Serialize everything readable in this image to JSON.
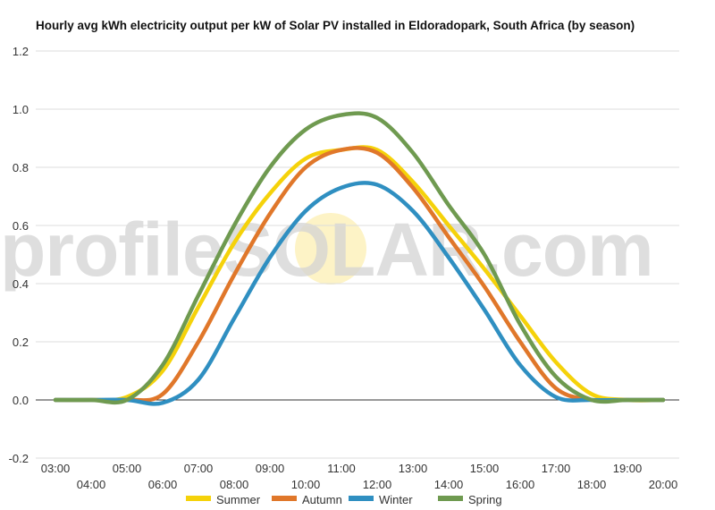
{
  "chart_data": {
    "type": "line",
    "title": "Hourly avg kWh electricity output per kW of Solar PV installed in Eldoradopark, South Africa (by season)",
    "xlabel": "",
    "ylabel": "",
    "x": [
      "03:00",
      "04:00",
      "05:00",
      "06:00",
      "07:00",
      "08:00",
      "09:00",
      "10:00",
      "11:00",
      "12:00",
      "13:00",
      "14:00",
      "15:00",
      "16:00",
      "17:00",
      "18:00",
      "19:00",
      "20:00"
    ],
    "ylim": [
      -0.2,
      1.2
    ],
    "yticks": [
      "-0.2",
      "0.0",
      "0.2",
      "0.4",
      "0.6",
      "0.8",
      "1.0",
      "1.2"
    ],
    "grid": true,
    "legend_position": "bottom",
    "series": [
      {
        "name": "Summer",
        "color": "#f5d20a",
        "values": [
          0,
          0,
          0.01,
          0.1,
          0.32,
          0.54,
          0.71,
          0.83,
          0.86,
          0.86,
          0.75,
          0.6,
          0.45,
          0.29,
          0.13,
          0.02,
          0,
          0
        ]
      },
      {
        "name": "Autumn",
        "color": "#e0772a",
        "values": [
          0,
          0,
          0,
          0.02,
          0.2,
          0.43,
          0.64,
          0.8,
          0.86,
          0.85,
          0.73,
          0.56,
          0.39,
          0.2,
          0.04,
          0,
          0,
          0
        ]
      },
      {
        "name": "Winter",
        "color": "#2f8fc1",
        "values": [
          0,
          0,
          0,
          -0.01,
          0.07,
          0.28,
          0.49,
          0.65,
          0.73,
          0.74,
          0.65,
          0.49,
          0.31,
          0.12,
          0.01,
          0,
          0,
          0
        ]
      },
      {
        "name": "Spring",
        "color": "#6f9a50",
        "values": [
          0,
          0,
          0,
          0.12,
          0.36,
          0.6,
          0.8,
          0.93,
          0.98,
          0.97,
          0.85,
          0.67,
          0.5,
          0.26,
          0.08,
          0,
          0,
          0
        ]
      }
    ],
    "watermark": "profileSOLAR.com"
  }
}
